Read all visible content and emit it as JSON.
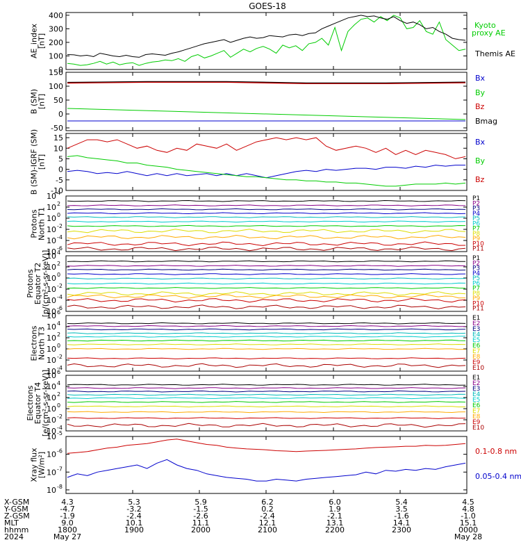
{
  "title": "GOES-18",
  "colors": {
    "black": "#000000",
    "red": "#cc0000",
    "green": "#00cc00",
    "blue": "#0000cc",
    "navy": "#000080",
    "cyan": "#00bbbb",
    "aqua": "#00cccc",
    "lime": "#00dd00",
    "yellow": "#dddd00",
    "orange": "#ffaa00",
    "darkred": "#aa0000",
    "purple": "#880088"
  },
  "chart_data": [
    {
      "type": "line",
      "id": "ae",
      "ylabel": [
        "AE_index",
        "[nT]"
      ],
      "ylim": [
        0,
        420
      ],
      "yticks": [
        0,
        100,
        200,
        300,
        400
      ],
      "series": [
        {
          "name": "Kyoto proxy AE",
          "color": "#00cc00",
          "values": [
            45,
            40,
            30,
            35,
            45,
            60,
            40,
            55,
            35,
            45,
            50,
            30,
            45,
            55,
            60,
            70,
            65,
            80,
            60,
            95,
            110,
            85,
            100,
            120,
            140,
            90,
            120,
            150,
            130,
            155,
            170,
            150,
            120,
            180,
            160,
            175,
            140,
            190,
            200,
            230,
            180,
            310,
            140,
            280,
            330,
            370,
            380,
            350,
            390,
            360,
            400,
            380,
            300,
            310,
            360,
            280,
            260,
            350,
            220,
            180,
            140,
            150
          ]
        },
        {
          "name": "Themis AE",
          "color": "#000000",
          "values": [
            110,
            108,
            100,
            105,
            95,
            120,
            110,
            100,
            95,
            105,
            95,
            90,
            110,
            115,
            110,
            105,
            120,
            130,
            145,
            160,
            175,
            190,
            200,
            210,
            220,
            200,
            215,
            230,
            240,
            230,
            235,
            250,
            245,
            240,
            255,
            260,
            250,
            265,
            270,
            300,
            320,
            340,
            360,
            380,
            390,
            400,
            390,
            395,
            380,
            370,
            390,
            360,
            340,
            350,
            330,
            300,
            310,
            280,
            260,
            230,
            220,
            215
          ]
        }
      ]
    },
    {
      "type": "line",
      "id": "b_sm",
      "ylabel": [
        "B (SM)",
        "[nT]"
      ],
      "ylim": [
        -60,
        150
      ],
      "yticks": [
        -50,
        0,
        50,
        100,
        150
      ],
      "series": [
        {
          "name": "Bx",
          "color": "#0000cc",
          "values": [
            -25,
            -25
          ]
        },
        {
          "name": "By",
          "color": "#00cc00",
          "values": [
            20,
            -20
          ]
        },
        {
          "name": "Bz",
          "color": "#cc0000",
          "values": [
            112,
            115,
            115,
            110,
            110,
            113
          ]
        },
        {
          "name": "Bmag",
          "color": "#000000",
          "values": [
            114,
            117,
            117,
            112,
            112,
            115
          ]
        }
      ]
    },
    {
      "type": "line",
      "id": "b_igrf",
      "ylabel": [
        "B (SM)-IGRF (SM)",
        "[nT]"
      ],
      "ylim": [
        -10,
        17
      ],
      "yticks": [
        -10,
        -5,
        0,
        5,
        10,
        15
      ],
      "series": [
        {
          "name": "Bx",
          "color": "#0000cc",
          "values": [
            -1,
            -0.5,
            -1,
            -2,
            -1.5,
            -2,
            -1,
            -2,
            -3,
            -2,
            -3,
            -2,
            -3,
            -2.5,
            -2,
            -3,
            -2,
            -3,
            -2,
            -3,
            -4,
            -3,
            -2,
            -1,
            -0.5,
            -1,
            0,
            -0.5,
            0,
            0.5,
            0.5,
            0,
            1,
            1,
            0.5,
            1.5,
            1,
            2,
            1.5,
            2,
            2
          ]
        },
        {
          "name": "By",
          "color": "#00cc00",
          "values": [
            6,
            6.5,
            5.5,
            5,
            4.5,
            4,
            3,
            3,
            2,
            1.5,
            1,
            0,
            -0.5,
            -1,
            -1.5,
            -2,
            -2.5,
            -3,
            -3.5,
            -3.5,
            -4,
            -4.5,
            -5,
            -5,
            -5.5,
            -5.5,
            -6,
            -6,
            -6.5,
            -6.5,
            -7,
            -7.5,
            -8,
            -8,
            -7.5,
            -7,
            -7,
            -7,
            -6.5,
            -7,
            -6.5
          ]
        },
        {
          "name": "Bz",
          "color": "#cc0000",
          "values": [
            10,
            12,
            14,
            14,
            13,
            14,
            12,
            10,
            11,
            9,
            8,
            10,
            9,
            12,
            11,
            10,
            12,
            9,
            11,
            13,
            14,
            15,
            14,
            15,
            14,
            15,
            11,
            9,
            10,
            11,
            10,
            8,
            10,
            7,
            9,
            7,
            9,
            8,
            7,
            5,
            6
          ]
        }
      ]
    },
    {
      "type": "line",
      "id": "protons_t1",
      "yscale": "log",
      "ylabel": [
        "Protons",
        "North T1"
      ],
      "ylim_exp": [
        -6,
        4
      ],
      "ytick_exps": [
        -6,
        -4,
        -2,
        0,
        2,
        4
      ],
      "series": [
        {
          "name": "P1",
          "color": "#000000",
          "log10": 3.1
        },
        {
          "name": "P2",
          "color": "#880088",
          "log10": 2.3
        },
        {
          "name": "P3",
          "color": "#000080",
          "log10": 1.6
        },
        {
          "name": "P4",
          "color": "#0000cc",
          "log10": 0.9
        },
        {
          "name": "P5",
          "color": "#00bbbb",
          "log10": 0.2
        },
        {
          "name": "P6",
          "color": "#00cccc",
          "log10": -0.6
        },
        {
          "name": "P7",
          "color": "#00cc00",
          "log10": -1.4
        },
        {
          "name": "P8",
          "color": "#dddd00",
          "log10": -2.3
        },
        {
          "name": "P9",
          "color": "#ffaa00",
          "log10": -3.4
        },
        {
          "name": "P10",
          "color": "#cc0000",
          "log10": -4.6
        },
        {
          "name": "P11",
          "color": "#aa0000",
          "log10": -5.5
        }
      ]
    },
    {
      "type": "line",
      "id": "protons_t2",
      "yscale": "log",
      "ylabel": [
        "Protons",
        "Equator T2",
        "[p/(cm²-s-sr-keV)]"
      ],
      "ylim_exp": [
        -6,
        4
      ],
      "ytick_exps": [
        -6,
        -4,
        -2,
        0,
        2,
        4
      ],
      "series": [
        {
          "name": "P1",
          "color": "#000000",
          "log10": 3.0
        },
        {
          "name": "P2",
          "color": "#880088",
          "log10": 2.2
        },
        {
          "name": "P3",
          "color": "#000080",
          "log10": 1.5
        },
        {
          "name": "P4",
          "color": "#0000cc",
          "log10": 0.7
        },
        {
          "name": "P5",
          "color": "#00bbbb",
          "log10": -0.1
        },
        {
          "name": "P6",
          "color": "#00cccc",
          "log10": -1.0
        },
        {
          "name": "P7",
          "color": "#00cc00",
          "log10": -1.8
        },
        {
          "name": "P8",
          "color": "#dddd00",
          "log10": -2.8
        },
        {
          "name": "P9",
          "color": "#ffaa00",
          "log10": -3.3
        },
        {
          "name": "P10",
          "color": "#cc0000",
          "log10": -4.0
        },
        {
          "name": "P11",
          "color": "#aa0000",
          "log10": -5.2
        }
      ]
    },
    {
      "type": "line",
      "id": "electrons_t3",
      "yscale": "log",
      "ylabel": [
        "Electrons",
        "North T3"
      ],
      "ylim_exp": [
        -4,
        6
      ],
      "ytick_exps": [
        -4,
        -2,
        0,
        2,
        4,
        6
      ],
      "series": [
        {
          "name": "E1",
          "color": "#000000",
          "log10": 4.6
        },
        {
          "name": "E2",
          "color": "#880088",
          "log10": 4.1
        },
        {
          "name": "E3",
          "color": "#000080",
          "log10": 3.5
        },
        {
          "name": "E4",
          "color": "#00bbbb",
          "log10": 2.8
        },
        {
          "name": "E5",
          "color": "#00cccc",
          "log10": 2.2
        },
        {
          "name": "E6",
          "color": "#00cc00",
          "log10": 1.5
        },
        {
          "name": "E7",
          "color": "#dddd00",
          "log10": 0.8
        },
        {
          "name": "E8",
          "color": "#ffaa00",
          "log10": 0.0
        },
        {
          "name": "E9",
          "color": "#cc0000",
          "log10": -1.7
        },
        {
          "name": "E10",
          "color": "#aa0000",
          "log10": -3.0
        }
      ]
    },
    {
      "type": "line",
      "id": "electrons_t4",
      "yscale": "log",
      "ylabel": [
        "Electrons",
        "Equator T4",
        "[e/(cm²-s-sr-keV)]"
      ],
      "ylim_exp": [
        -4,
        6
      ],
      "ytick_exps": [
        -4,
        -2,
        0,
        2,
        4,
        6
      ],
      "series": [
        {
          "name": "E1",
          "color": "#000000",
          "log10": 4.3
        },
        {
          "name": "E2",
          "color": "#880088",
          "log10": 3.7
        },
        {
          "name": "E3",
          "color": "#000080",
          "log10": 3.1
        },
        {
          "name": "E4",
          "color": "#00bbbb",
          "log10": 2.5
        },
        {
          "name": "E5",
          "color": "#00cccc",
          "log10": 1.9
        },
        {
          "name": "E6",
          "color": "#00cc00",
          "log10": 1.2
        },
        {
          "name": "E7",
          "color": "#dddd00",
          "log10": 0.4
        },
        {
          "name": "E8",
          "color": "#ffaa00",
          "log10": -0.6
        },
        {
          "name": "E9",
          "color": "#cc0000",
          "log10": -1.7
        },
        {
          "name": "E10",
          "color": "#aa0000",
          "log10": -3.0
        }
      ]
    },
    {
      "type": "line",
      "id": "xray",
      "yscale": "log",
      "ylabel": [
        "Xray flux",
        "[W/m²]"
      ],
      "ylim_exp": [
        -8.2,
        -5
      ],
      "ytick_exps": [
        -8,
        -7,
        -6,
        -5
      ],
      "series": [
        {
          "name": "0.1-0.8 nm",
          "color": "#cc0000",
          "values_log10": [
            -5.95,
            -5.9,
            -5.85,
            -5.75,
            -5.65,
            -5.6,
            -5.5,
            -5.45,
            -5.4,
            -5.3,
            -5.2,
            -5.15,
            -5.25,
            -5.35,
            -5.45,
            -5.5,
            -5.6,
            -5.65,
            -5.7,
            -5.72,
            -5.75,
            -5.8,
            -5.82,
            -5.85,
            -5.82,
            -5.8,
            -5.78,
            -5.75,
            -5.72,
            -5.7,
            -5.65,
            -5.62,
            -5.6,
            -5.58,
            -5.55,
            -5.55,
            -5.5,
            -5.52,
            -5.5,
            -5.45,
            -5.4
          ]
        },
        {
          "name": "0.05-0.4 nm",
          "color": "#0000cc",
          "values_log10": [
            -7.3,
            -7.1,
            -7.2,
            -7.0,
            -6.9,
            -6.8,
            -6.7,
            -6.6,
            -6.8,
            -6.5,
            -6.3,
            -6.6,
            -6.8,
            -6.9,
            -7.1,
            -7.2,
            -7.3,
            -7.35,
            -7.4,
            -7.5,
            -7.5,
            -7.4,
            -7.45,
            -7.5,
            -7.4,
            -7.35,
            -7.3,
            -7.25,
            -7.2,
            -7.15,
            -7.0,
            -7.1,
            -6.9,
            -6.95,
            -6.85,
            -6.9,
            -6.8,
            -6.85,
            -6.7,
            -6.6,
            -6.5
          ]
        }
      ]
    }
  ],
  "ephemeris": {
    "labels": [
      "X-GSM",
      "Y-GSM",
      "Z-GSM",
      "MLT",
      "hhmm",
      "2024"
    ],
    "columns": [
      {
        "values": [
          "4.3",
          "-4.7",
          "-1.9",
          "9.0",
          "1800",
          "May 27"
        ]
      },
      {
        "values": [
          "5.3",
          "-3.2",
          "-2.4",
          "10.1",
          "1900",
          ""
        ]
      },
      {
        "values": [
          "5.9",
          "-1.5",
          "-2.6",
          "11.1",
          "2000",
          ""
        ]
      },
      {
        "values": [
          "6.2",
          "0.2",
          "-2.4",
          "12.1",
          "2100",
          ""
        ]
      },
      {
        "values": [
          "6.0",
          "1.9",
          "-2.1",
          "13.1",
          "2200",
          ""
        ]
      },
      {
        "values": [
          "5.4",
          "3.5",
          "-1.6",
          "14.1",
          "2300",
          ""
        ]
      },
      {
        "values": [
          "4.5",
          "4.8",
          "-1.0",
          "15.1",
          "0000",
          "May 28"
        ]
      }
    ]
  }
}
